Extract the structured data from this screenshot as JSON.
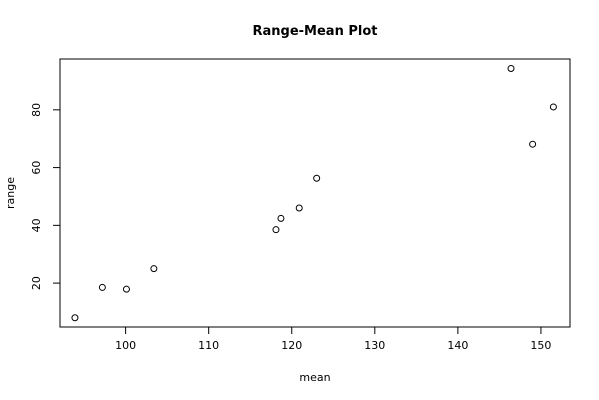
{
  "chart_data": {
    "type": "scatter",
    "title": "Range-Mean Plot",
    "xlabel": "mean",
    "ylabel": "range",
    "xlim": [
      92.1,
      153.5
    ],
    "ylim": [
      4.8,
      97.6
    ],
    "x_ticks": [
      100,
      110,
      120,
      130,
      140,
      150
    ],
    "y_ticks": [
      20,
      40,
      60,
      80
    ],
    "grid": false,
    "legend": "none",
    "marker": "open-circle",
    "points": [
      {
        "x": 93.9,
        "y": 8.0
      },
      {
        "x": 97.2,
        "y": 18.5
      },
      {
        "x": 100.1,
        "y": 17.9
      },
      {
        "x": 103.4,
        "y": 25.0
      },
      {
        "x": 118.1,
        "y": 38.5
      },
      {
        "x": 118.7,
        "y": 42.4
      },
      {
        "x": 120.9,
        "y": 46.0
      },
      {
        "x": 123.0,
        "y": 56.3
      },
      {
        "x": 146.4,
        "y": 94.3
      },
      {
        "x": 149.0,
        "y": 68.1
      },
      {
        "x": 151.5,
        "y": 81.0
      }
    ]
  }
}
